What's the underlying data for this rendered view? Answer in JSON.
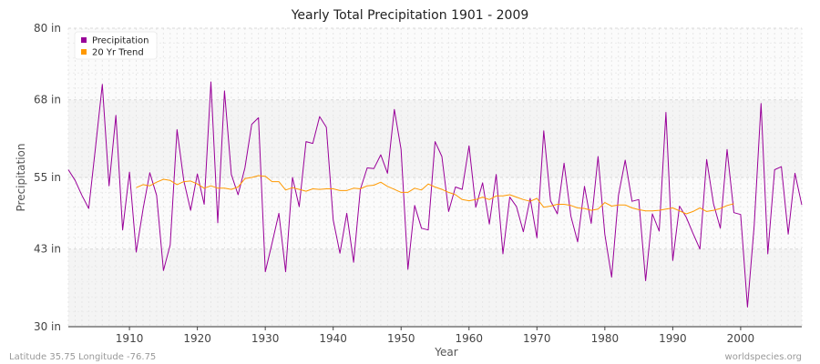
{
  "chart_data": {
    "type": "line",
    "title": "Yearly Total Precipitation 1901 - 2009",
    "xlabel": "Year",
    "ylabel": "Precipitation",
    "xlim": [
      1901,
      2009
    ],
    "ylim": [
      30,
      80
    ],
    "y_ticks": [
      {
        "value": 30,
        "label": "30 in"
      },
      {
        "value": 43,
        "label": "43 in"
      },
      {
        "value": 55,
        "label": "55 in"
      },
      {
        "value": 68,
        "label": "68 in"
      },
      {
        "value": 80,
        "label": "80 in"
      }
    ],
    "x_ticks": [
      1910,
      1920,
      1930,
      1940,
      1950,
      1960,
      1970,
      1980,
      1990,
      2000
    ],
    "grid": true,
    "legend_position": "top-left",
    "series": [
      {
        "name": "Precipitation",
        "color": "#990099",
        "x": [
          1901,
          1902,
          1903,
          1904,
          1905,
          1906,
          1907,
          1908,
          1909,
          1910,
          1911,
          1912,
          1913,
          1914,
          1915,
          1916,
          1917,
          1918,
          1919,
          1920,
          1921,
          1922,
          1923,
          1924,
          1925,
          1926,
          1927,
          1928,
          1929,
          1930,
          1931,
          1932,
          1933,
          1934,
          1935,
          1936,
          1937,
          1938,
          1939,
          1940,
          1941,
          1942,
          1943,
          1944,
          1945,
          1946,
          1947,
          1948,
          1949,
          1950,
          1951,
          1952,
          1953,
          1954,
          1955,
          1956,
          1957,
          1958,
          1959,
          1960,
          1961,
          1962,
          1963,
          1964,
          1965,
          1966,
          1967,
          1968,
          1969,
          1970,
          1971,
          1972,
          1973,
          1974,
          1975,
          1976,
          1977,
          1978,
          1979,
          1980,
          1981,
          1982,
          1983,
          1984,
          1985,
          1986,
          1987,
          1988,
          1989,
          1990,
          1991,
          1992,
          1993,
          1994,
          1995,
          1996,
          1997,
          1998,
          1999,
          2000,
          2001,
          2002,
          2003,
          2004,
          2005,
          2006,
          2007,
          2008,
          2009
        ],
        "values": [
          56.3,
          54.5,
          52.0,
          49.8,
          60.0,
          70.6,
          53.6,
          65.4,
          46.2,
          55.9,
          42.5,
          49.7,
          55.8,
          52.0,
          39.4,
          43.7,
          63.0,
          54.5,
          49.5,
          55.6,
          50.5,
          71.0,
          47.4,
          69.5,
          55.5,
          52.1,
          56.6,
          63.9,
          65.0,
          39.2,
          44.0,
          49.0,
          39.2,
          55.0,
          50.1,
          61.0,
          60.7,
          65.2,
          63.4,
          47.9,
          42.3,
          49.0,
          40.8,
          53.0,
          56.6,
          56.5,
          58.8,
          55.7,
          66.4,
          59.7,
          39.6,
          50.3,
          46.5,
          46.2,
          61.0,
          58.5,
          49.3,
          53.4,
          53.0,
          60.3,
          50.0,
          54.1,
          47.2,
          55.5,
          42.2,
          51.7,
          50.1,
          45.9,
          51.5,
          44.9,
          62.8,
          51.1,
          48.9,
          57.4,
          48.5,
          44.2,
          53.5,
          47.3,
          58.5,
          45.5,
          38.3,
          52.0,
          57.9,
          51.0,
          51.3,
          37.7,
          48.9,
          46.0,
          65.9,
          41.1,
          50.2,
          48.3,
          45.6,
          43.0,
          58.0,
          50.6,
          46.5,
          59.7,
          49.1,
          48.8,
          33.3,
          47.0,
          67.4,
          42.2,
          56.3,
          56.8,
          45.5,
          55.7,
          50.4
        ]
      },
      {
        "name": "20 Yr Trend",
        "color": "#ff9900",
        "x": [
          1911,
          1912,
          1913,
          1914,
          1915,
          1916,
          1917,
          1918,
          1919,
          1920,
          1921,
          1922,
          1923,
          1924,
          1925,
          1926,
          1927,
          1928,
          1929,
          1930,
          1931,
          1932,
          1933,
          1934,
          1935,
          1936,
          1937,
          1938,
          1939,
          1940,
          1941,
          1942,
          1943,
          1944,
          1945,
          1946,
          1947,
          1948,
          1949,
          1950,
          1951,
          1952,
          1953,
          1954,
          1955,
          1956,
          1957,
          1958,
          1959,
          1960,
          1961,
          1962,
          1963,
          1964,
          1965,
          1966,
          1967,
          1968,
          1969,
          1970,
          1971,
          1972,
          1973,
          1974,
          1975,
          1976,
          1977,
          1978,
          1979,
          1980,
          1981,
          1982,
          1983,
          1984,
          1985,
          1986,
          1987,
          1988,
          1989,
          1990,
          1991,
          1992,
          1993,
          1994,
          1995,
          1996,
          1997,
          1998,
          1999
        ],
        "values": [
          53.3,
          53.8,
          53.6,
          54.2,
          54.7,
          54.5,
          53.8,
          54.3,
          54.4,
          53.9,
          53.2,
          53.6,
          53.2,
          53.2,
          53.0,
          53.4,
          54.8,
          55.0,
          55.3,
          55.2,
          54.3,
          54.3,
          52.9,
          53.3,
          53.0,
          52.7,
          53.1,
          53.0,
          53.1,
          53.1,
          52.8,
          52.8,
          53.2,
          53.1,
          53.6,
          53.7,
          54.2,
          53.5,
          53.0,
          52.5,
          52.5,
          53.2,
          52.9,
          53.9,
          53.4,
          53.0,
          52.5,
          52.1,
          51.3,
          51.1,
          51.3,
          51.7,
          51.3,
          51.9,
          51.9,
          52.1,
          51.7,
          51.3,
          51.0,
          51.5,
          50.0,
          50.2,
          50.5,
          50.5,
          50.3,
          49.9,
          49.8,
          49.5,
          49.7,
          50.8,
          50.2,
          50.4,
          50.4,
          49.9,
          49.6,
          49.4,
          49.4,
          49.5,
          49.7,
          49.9,
          49.4,
          48.9,
          49.3,
          49.9,
          49.3,
          49.5,
          49.8,
          50.3,
          50.6
        ]
      }
    ]
  },
  "footer": {
    "location": "Latitude 35.75 Longitude -76.75",
    "source": "worldspecies.org"
  }
}
